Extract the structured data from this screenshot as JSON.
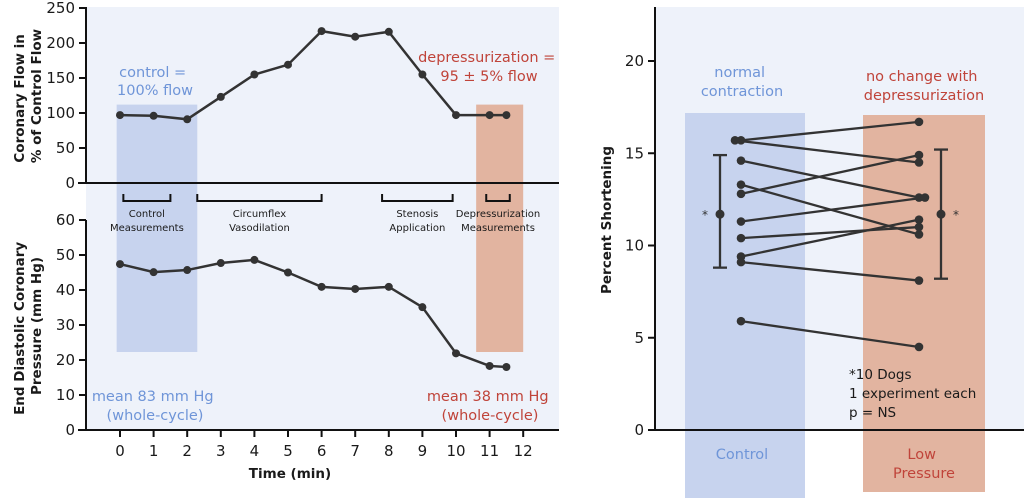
{
  "colors": {
    "panel_bg": "#eef2fa",
    "control_band": "#c7d3ee",
    "low_pressure_band": "#e2b4a0",
    "line": "#333333",
    "control_text": "#6f95d8",
    "low_pressure_text": "#c0443a"
  },
  "chart_data": [
    {
      "id": "coronary-flow",
      "type": "line",
      "title": "",
      "xlabel": "Time (min)",
      "ylabel_lines": [
        "Coronary Flow in",
        "% of Control Flow"
      ],
      "ylim": [
        0,
        250
      ],
      "yticks": [
        0,
        50,
        100,
        150,
        200,
        250
      ],
      "xlim": [
        -0.8,
        13.2
      ],
      "x": [
        0,
        1,
        2,
        3,
        4,
        5,
        6,
        7,
        8,
        9,
        10,
        11,
        11.5
      ],
      "values": [
        97,
        96,
        91,
        123,
        155,
        169,
        217,
        209,
        216,
        155,
        97,
        97,
        97
      ],
      "annotations": {
        "control": [
          "control =",
          "100% flow"
        ],
        "depressurization": [
          "depressurization =",
          "95 ± 5% flow"
        ]
      },
      "shaded_regions": [
        {
          "name": "control",
          "x_range": [
            -0.1,
            2.3
          ],
          "y_max": 112
        },
        {
          "name": "depressurization",
          "x_range": [
            10.6,
            12
          ],
          "y_max": 112
        }
      ]
    },
    {
      "id": "end-diastolic-pressure",
      "type": "line",
      "xlabel": "Time (min)",
      "ylabel_lines": [
        "End Diastolic Coronary",
        "Pressure (mm Hg)"
      ],
      "ylim": [
        0,
        60
      ],
      "yticks": [
        0,
        10,
        20,
        30,
        40,
        50,
        60
      ],
      "xticks": [
        0,
        1,
        2,
        3,
        4,
        5,
        6,
        7,
        8,
        9,
        10,
        11,
        12
      ],
      "xlim": [
        -0.8,
        13.2
      ],
      "x": [
        0,
        1,
        2,
        3,
        4,
        5,
        6,
        7,
        8,
        9,
        10,
        11,
        11.5
      ],
      "values": [
        47.4,
        45.1,
        45.7,
        47.7,
        48.6,
        45.0,
        40.9,
        40.3,
        40.9,
        35.1,
        21.9,
        18.3,
        18.0
      ],
      "annotations": {
        "control": [
          "mean 83 mm Hg",
          "(whole-cycle)"
        ],
        "depressurization": [
          "mean 38 mm Hg",
          "(whole-cycle)"
        ]
      },
      "phases": [
        {
          "label": [
            "Control",
            "Measurements"
          ],
          "x_range": [
            0.1,
            1.5
          ]
        },
        {
          "label": [
            "Circumflex",
            "Vasodilation"
          ],
          "x_range": [
            2.3,
            6
          ]
        },
        {
          "label": [
            "Stenosis",
            "Application"
          ],
          "x_range": [
            7.8,
            9.9
          ]
        },
        {
          "label": [
            "Depressurization",
            "Measurements"
          ],
          "x_range": [
            10.9,
            11.6
          ]
        }
      ]
    },
    {
      "id": "percent-shortening",
      "type": "scatter",
      "ylabel": "Percent Shortening",
      "ylim": [
        0,
        22.9
      ],
      "yticks": [
        0,
        5,
        10,
        15,
        20
      ],
      "categories": [
        "Control",
        "Low Pressure"
      ],
      "category_labels": [
        [
          "Control"
        ],
        [
          "Low",
          "Pressure"
        ]
      ],
      "pairs": [
        [
          15.7,
          16.7
        ],
        [
          15.7,
          14.5
        ],
        [
          14.6,
          12.6
        ],
        [
          13.3,
          10.6
        ],
        [
          12.8,
          14.9
        ],
        [
          11.3,
          12.6
        ],
        [
          10.4,
          11.0
        ],
        [
          9.4,
          11.4
        ],
        [
          9.1,
          8.1
        ],
        [
          5.9,
          4.5
        ]
      ],
      "summary": [
        {
          "group": "Control",
          "mean": 11.7,
          "upper": 14.9,
          "lower": 8.8
        },
        {
          "group": "Low Pressure",
          "mean": 11.7,
          "upper": 15.2,
          "lower": 8.2
        }
      ],
      "annotations": {
        "control": [
          "normal",
          "contraction"
        ],
        "low_pressure": [
          "no change with",
          "depressurization"
        ],
        "note": [
          "*10 Dogs",
          "1 experiment each",
          "p = NS"
        ],
        "asterisk": "*"
      }
    }
  ]
}
